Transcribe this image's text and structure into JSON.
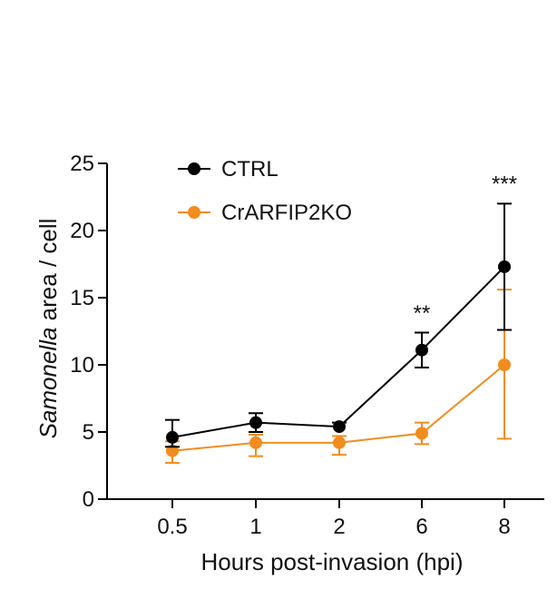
{
  "chart_data": {
    "type": "line",
    "title": "",
    "xlabel": "Hours post-invasion (hpi)",
    "ylabel_italic": "Samonella",
    "ylabel_rest": " area / cell",
    "categories": [
      "0.5",
      "1",
      "2",
      "6",
      "8"
    ],
    "ylim": [
      0,
      25
    ],
    "yticks": [
      0,
      5,
      10,
      15,
      20,
      25
    ],
    "ytick_labels": [
      "0",
      "5",
      "10",
      "15",
      "20",
      "25"
    ],
    "grid": false,
    "legend_position": "top-left",
    "series": [
      {
        "name": "CTRL",
        "color": "#000000",
        "values": [
          4.6,
          5.7,
          5.4,
          11.1,
          17.3
        ],
        "error_plus": [
          1.3,
          0.7,
          0.3,
          1.3,
          4.7
        ],
        "error_minus": [
          0.7,
          0.7,
          0.0,
          1.3,
          4.7
        ]
      },
      {
        "name": "CrARFIP2KO",
        "color": "#F28C1E",
        "values": [
          3.6,
          4.2,
          4.2,
          4.9,
          10.0
        ],
        "error_plus": [
          0.7,
          0.6,
          0.5,
          0.8,
          5.6
        ],
        "error_minus": [
          0.9,
          1.0,
          0.9,
          0.8,
          5.5
        ]
      }
    ],
    "annotations": [
      {
        "text": "**",
        "category_index": 3,
        "y": 14.0
      },
      {
        "text": "***",
        "category_index": 4,
        "y": 23.6
      }
    ]
  }
}
